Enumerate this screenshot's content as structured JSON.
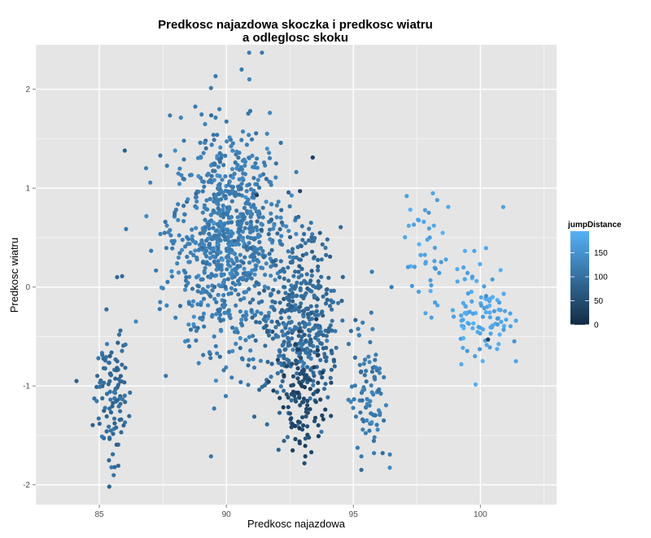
{
  "chart_data": {
    "type": "scatter",
    "title_lines": [
      "Predkosc najazdowa skoczka i predkosc wiatru",
      "a odleglosc skoku"
    ],
    "xlabel": "Predkosc najazdowa",
    "ylabel": "Predkosc wiatru",
    "xlim": [
      82.5,
      103
    ],
    "ylim": [
      -2.2,
      2.45
    ],
    "x_ticks": [
      85,
      90,
      95,
      100
    ],
    "y_ticks": [
      -2,
      -1,
      0,
      1,
      2
    ],
    "grid": true,
    "legend": {
      "title": "jumpDistance",
      "position": "right",
      "ticks": [
        0,
        50,
        100,
        150
      ],
      "range": [
        0,
        195
      ],
      "color_low": "#132B43",
      "color_high": "#56B1F7"
    },
    "clusters": [
      {
        "cx": 85.5,
        "cy": -1.1,
        "sx": 0.35,
        "sy": 0.35,
        "n": 110,
        "c": 95
      },
      {
        "cx": 90.0,
        "cy": 0.5,
        "sx": 1.05,
        "sy": 0.55,
        "n": 850,
        "c": 120
      },
      {
        "cx": 92.9,
        "cy": -0.3,
        "sx": 0.8,
        "sy": 0.45,
        "n": 420,
        "c": 95
      },
      {
        "cx": 93.0,
        "cy": -1.15,
        "sx": 0.45,
        "sy": 0.25,
        "n": 110,
        "c": 40
      },
      {
        "cx": 95.6,
        "cy": -1.1,
        "sx": 0.35,
        "sy": 0.35,
        "n": 90,
        "c": 115
      },
      {
        "cx": 98.0,
        "cy": 0.35,
        "sx": 0.5,
        "sy": 0.3,
        "n": 40,
        "c": 175
      },
      {
        "cx": 100.0,
        "cy": -0.25,
        "sx": 0.55,
        "sy": 0.25,
        "n": 100,
        "c": 180
      }
    ],
    "extra_points": [
      {
        "x": 86.0,
        "y": 1.38,
        "c": 80
      },
      {
        "x": 90.9,
        "y": 2.37,
        "c": 115
      },
      {
        "x": 91.4,
        "y": 2.37,
        "c": 110
      },
      {
        "x": 90.6,
        "y": 2.2,
        "c": 115
      },
      {
        "x": 93.4,
        "y": 1.31,
        "c": 30
      },
      {
        "x": 92.9,
        "y": 0.97,
        "c": 40
      },
      {
        "x": 91.2,
        "y": 0.93,
        "c": 30
      },
      {
        "x": 84.1,
        "y": -0.95,
        "c": 80
      },
      {
        "x": 85.9,
        "y": 0.11,
        "c": 90
      },
      {
        "x": 85.7,
        "y": 0.1,
        "c": 90
      },
      {
        "x": 87.4,
        "y": 1.33,
        "c": 100
      },
      {
        "x": 87.6,
        "y": 0.66,
        "c": 105
      },
      {
        "x": 96.5,
        "y": 0.0,
        "c": 115
      },
      {
        "x": 97.1,
        "y": 0.92,
        "c": 170
      },
      {
        "x": 98.3,
        "y": 0.88,
        "c": 165
      },
      {
        "x": 100.9,
        "y": 0.81,
        "c": 170
      },
      {
        "x": 101.4,
        "y": -0.34,
        "c": 180
      },
      {
        "x": 101.4,
        "y": -0.75,
        "c": 175
      },
      {
        "x": 100.3,
        "y": -0.53,
        "c": 30
      },
      {
        "x": 91.1,
        "y": -1.31,
        "c": 90
      },
      {
        "x": 89.9,
        "y": -0.84,
        "c": 110
      }
    ]
  }
}
